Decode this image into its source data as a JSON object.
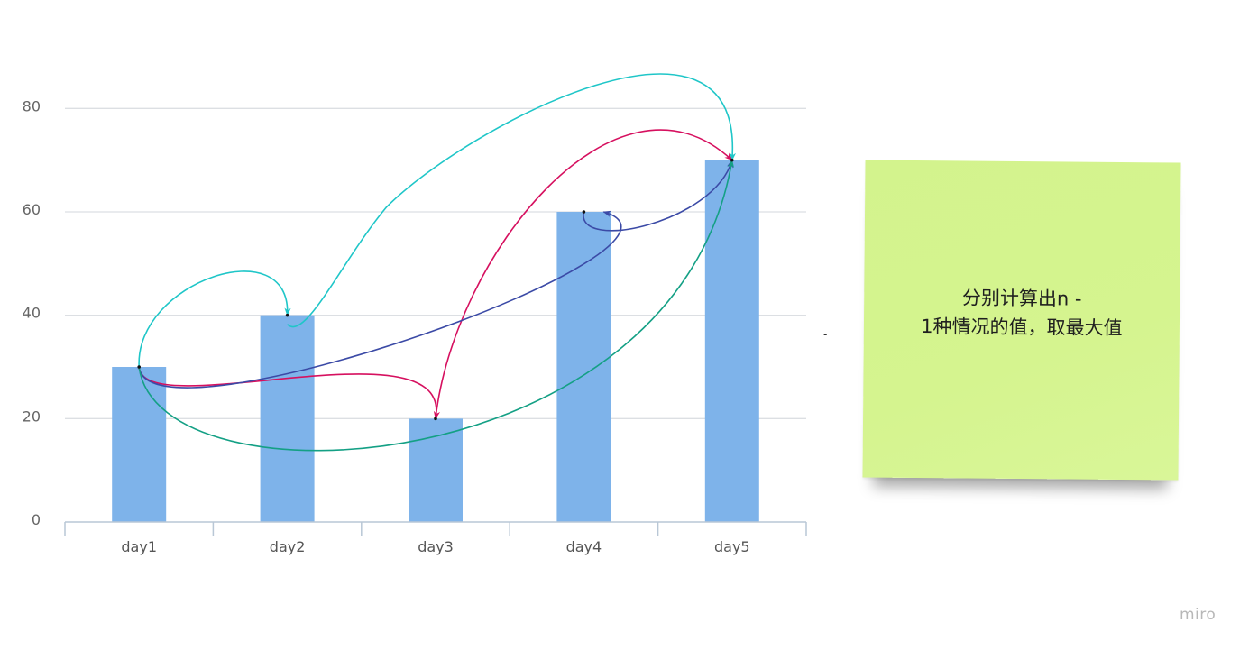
{
  "chart_data": {
    "type": "bar",
    "categories": [
      "day1",
      "day2",
      "day3",
      "day4",
      "day5"
    ],
    "values": [
      30,
      40,
      20,
      60,
      70
    ],
    "ylim": [
      0,
      90
    ],
    "yticks": [
      "0",
      "20",
      "40",
      "60",
      "80"
    ],
    "ytick_values": [
      0,
      20,
      40,
      60,
      80
    ],
    "title": "",
    "xlabel": "",
    "ylabel": "",
    "grid": true,
    "bar_color": "#7eb3ea",
    "arrows": [
      {
        "from": "day1",
        "to": "day2",
        "color": "#1fc6c8"
      },
      {
        "from": "day2",
        "to": "day5",
        "color": "#1fc6c8"
      },
      {
        "from": "day1",
        "to": "day3",
        "color": "#d6105f"
      },
      {
        "from": "day3",
        "to": "day5",
        "color": "#d6105f"
      },
      {
        "from": "day1",
        "to": "day4",
        "color": "#3b4aa6"
      },
      {
        "from": "day4",
        "to": "day5",
        "color": "#3b4aa6"
      },
      {
        "from": "day1",
        "to": "day5",
        "color": "#14a085"
      }
    ]
  },
  "sticky_note": {
    "text": "分别计算出n -\n1种情况的值，取最大值",
    "color": "#d5f48f"
  },
  "stray_mark": "-",
  "watermark": "miro"
}
